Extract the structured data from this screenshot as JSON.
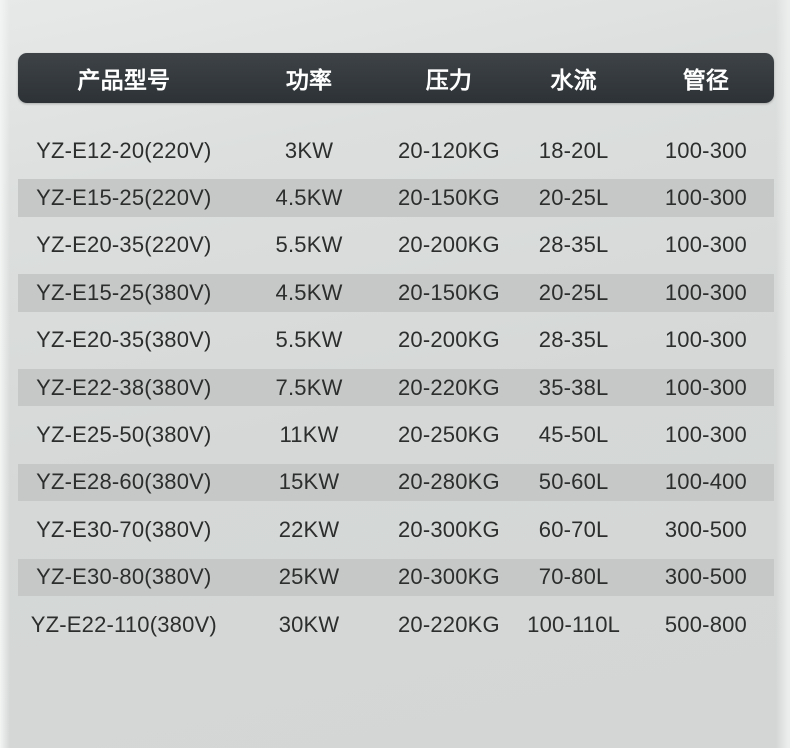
{
  "table": {
    "columns": [
      {
        "key": "model",
        "label": "产品型号"
      },
      {
        "key": "power",
        "label": "功率"
      },
      {
        "key": "pressure",
        "label": "压力"
      },
      {
        "key": "flow",
        "label": "水流"
      },
      {
        "key": "diameter",
        "label": "管径"
      }
    ],
    "rows": [
      {
        "model": "YZ-E12-20(220V)",
        "power": "3KW",
        "pressure": "20-120KG",
        "flow": "18-20L",
        "diameter": "100-300"
      },
      {
        "model": "YZ-E15-25(220V)",
        "power": "4.5KW",
        "pressure": "20-150KG",
        "flow": "20-25L",
        "diameter": "100-300"
      },
      {
        "model": "YZ-E20-35(220V)",
        "power": "5.5KW",
        "pressure": "20-200KG",
        "flow": "28-35L",
        "diameter": "100-300"
      },
      {
        "model": "YZ-E15-25(380V)",
        "power": "4.5KW",
        "pressure": "20-150KG",
        "flow": "20-25L",
        "diameter": "100-300"
      },
      {
        "model": "YZ-E20-35(380V)",
        "power": "5.5KW",
        "pressure": "20-200KG",
        "flow": "28-35L",
        "diameter": "100-300"
      },
      {
        "model": "YZ-E22-38(380V)",
        "power": "7.5KW",
        "pressure": "20-220KG",
        "flow": "35-38L",
        "diameter": "100-300"
      },
      {
        "model": "YZ-E25-50(380V)",
        "power": "11KW",
        "pressure": "20-250KG",
        "flow": "45-50L",
        "diameter": "100-300"
      },
      {
        "model": "YZ-E28-60(380V)",
        "power": "15KW",
        "pressure": "20-280KG",
        "flow": "50-60L",
        "diameter": "100-400"
      },
      {
        "model": "YZ-E30-70(380V)",
        "power": "22KW",
        "pressure": "20-300KG",
        "flow": "60-70L",
        "diameter": "300-500"
      },
      {
        "model": "YZ-E30-80(380V)",
        "power": "25KW",
        "pressure": "20-300KG",
        "flow": "70-80L",
        "diameter": "300-500"
      },
      {
        "model": "YZ-E22-110(380V)",
        "power": "30KW",
        "pressure": "20-220KG",
        "flow": "100-110L",
        "diameter": "500-800"
      }
    ]
  },
  "colors": {
    "header_bg": "#353a3f",
    "header_text": "#ffffff",
    "stripe": "#c6c8c8",
    "body_text": "#2c2d2d",
    "page_bg": "#d5d8d7"
  }
}
